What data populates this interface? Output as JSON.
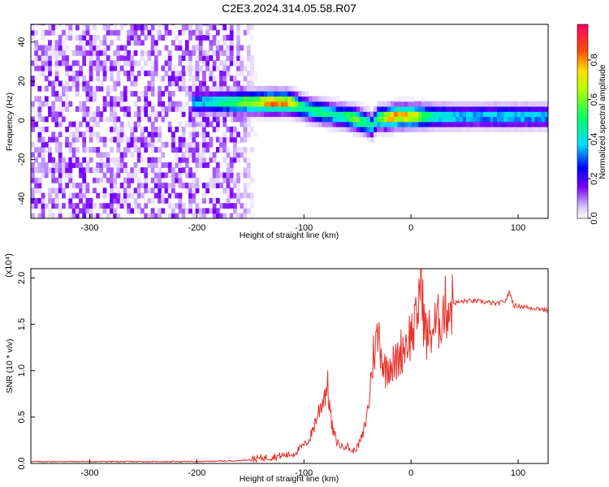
{
  "title": "C2E3.2024.314.05.58.R07",
  "chart_data": [
    {
      "type": "heatmap",
      "xlabel": "Height of straight line (km)",
      "ylabel": "Frequency (Hz)",
      "xlim": [
        -355,
        128
      ],
      "ylim": [
        -50,
        49
      ],
      "x_ticks": [
        -300,
        -200,
        -100,
        0,
        100
      ],
      "y_ticks": [
        -40,
        -20,
        0,
        20,
        40
      ],
      "colorbar": {
        "label": "Normalized spectral amplitude",
        "range": [
          0,
          0.98
        ],
        "ticks": [
          0.0,
          0.2,
          0.4,
          0.6,
          0.8
        ]
      },
      "ridge": {
        "x": [
          -205,
          -180,
          -150,
          -130,
          -115,
          -105,
          -95,
          -85,
          -75,
          -65,
          -55,
          -45,
          -38,
          -33,
          -25,
          -15,
          0,
          20,
          60,
          90,
          128
        ],
        "y": [
          8,
          8,
          8,
          8,
          8,
          6,
          4,
          3,
          2,
          1,
          0,
          -2,
          -4,
          0,
          0,
          1,
          1,
          1,
          1,
          1,
          1
        ],
        "peak_amplitude": [
          0.4,
          0.5,
          0.75,
          0.9,
          0.85,
          0.6,
          0.5,
          0.6,
          0.5,
          0.55,
          0.7,
          0.6,
          0.5,
          0.6,
          0.8,
          0.9,
          0.85,
          0.5,
          0.4,
          0.45,
          0.4
        ]
      },
      "noise_region": {
        "x_from": -355,
        "x_to": -165,
        "amplitude": 0.05
      }
    },
    {
      "type": "line",
      "xlabel": "Height of straight line (km)",
      "ylabel": "SNR (10 * v/v)",
      "y_multiplier": "(x10⁴)",
      "xlim": [
        -355,
        128
      ],
      "ylim": [
        0,
        2.1
      ],
      "x_ticks": [
        -300,
        -200,
        -100,
        0,
        100
      ],
      "y_ticks": [
        0.0,
        0.5,
        1.0,
        1.5,
        2.0
      ],
      "color": "#e8312b",
      "x": [
        -355,
        -300,
        -250,
        -200,
        -160,
        -130,
        -110,
        -95,
        -88,
        -82,
        -78,
        -74,
        -70,
        -65,
        -60,
        -55,
        -50,
        -45,
        -40,
        -35,
        -30,
        -25,
        -20,
        -15,
        -10,
        -5,
        0,
        5,
        8,
        10,
        12,
        15,
        20,
        25,
        30,
        35,
        40,
        50,
        60,
        70,
        80,
        88,
        92,
        96,
        100,
        110,
        120,
        128
      ],
      "y": [
        0.02,
        0.02,
        0.02,
        0.02,
        0.03,
        0.07,
        0.1,
        0.25,
        0.5,
        0.7,
        0.85,
        0.4,
        0.25,
        0.18,
        0.2,
        0.12,
        0.18,
        0.3,
        0.6,
        1.2,
        1.4,
        1.0,
        1.1,
        1.05,
        1.2,
        1.3,
        1.4,
        1.5,
        1.9,
        2.05,
        1.5,
        1.35,
        1.45,
        1.5,
        1.65,
        1.7,
        1.73,
        1.75,
        1.75,
        1.74,
        1.72,
        1.75,
        1.85,
        1.7,
        1.7,
        1.68,
        1.67,
        1.65
      ]
    }
  ]
}
